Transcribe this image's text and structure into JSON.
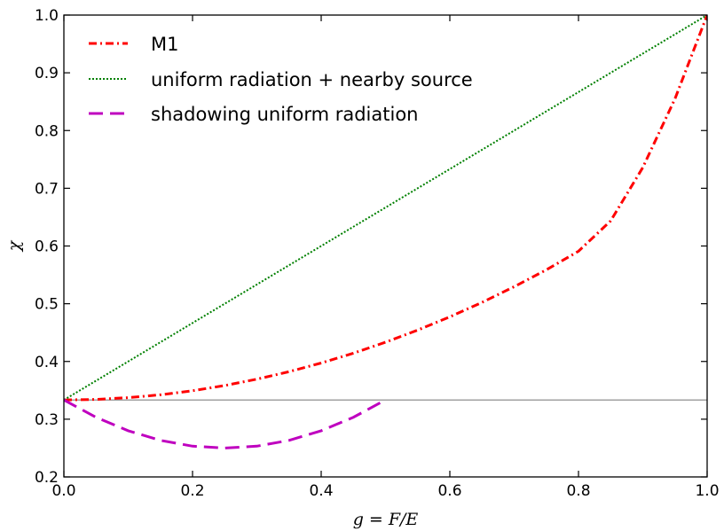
{
  "chart_data": {
    "type": "line",
    "xlabel": "g = F/E",
    "ylabel": "χ",
    "xlim": [
      0.0,
      1.0
    ],
    "ylim": [
      0.2,
      1.0
    ],
    "x_ticks": [
      "0.0",
      "0.2",
      "0.4",
      "0.6",
      "0.8",
      "1.0"
    ],
    "y_ticks": [
      "0.2",
      "0.3",
      "0.4",
      "0.5",
      "0.6",
      "0.7",
      "0.8",
      "0.9",
      "1.0"
    ],
    "grid": false,
    "legend_position": "top-left",
    "reference_line": {
      "y": 0.3333,
      "color": "#808080"
    },
    "series": [
      {
        "name": "M1",
        "color": "#ff0000",
        "style": "dash-dot",
        "x": [
          0.0,
          0.05,
          0.1,
          0.15,
          0.2,
          0.25,
          0.3,
          0.35,
          0.4,
          0.45,
          0.5,
          0.55,
          0.6,
          0.65,
          0.7,
          0.75,
          0.8,
          0.85,
          0.9,
          0.95,
          1.0
        ],
        "y": [
          0.3333,
          0.3343,
          0.3373,
          0.3423,
          0.3493,
          0.3583,
          0.3693,
          0.3823,
          0.3973,
          0.4143,
          0.4333,
          0.4543,
          0.4773,
          0.5023,
          0.5295,
          0.5587,
          0.591,
          0.6435,
          0.736,
          0.855,
          1.0
        ]
      },
      {
        "name": "uniform radiation + nearby source",
        "color": "#008000",
        "style": "dotted",
        "x": [
          0.0,
          1.0
        ],
        "y": [
          0.3333,
          1.0
        ]
      },
      {
        "name": "shadowing uniform radiation",
        "color": "#bf00bf",
        "style": "dashed",
        "x": [
          0.0,
          0.05,
          0.1,
          0.15,
          0.2,
          0.25,
          0.3,
          0.35,
          0.4,
          0.45,
          0.5
        ],
        "y": [
          0.3333,
          0.3033,
          0.28,
          0.2633,
          0.2533,
          0.25,
          0.2533,
          0.2633,
          0.28,
          0.3033,
          0.3333
        ]
      }
    ]
  }
}
